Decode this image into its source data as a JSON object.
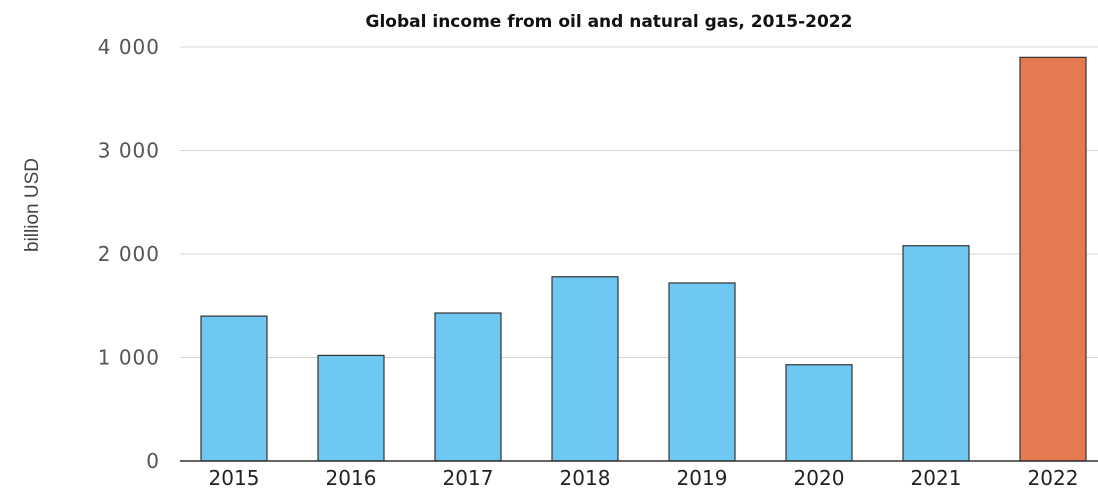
{
  "chart_data": {
    "type": "bar",
    "title": "Global income from oil and natural gas, 2015-2022",
    "xlabel": "",
    "ylabel": "billion USD",
    "categories": [
      "2015",
      "2016",
      "2017",
      "2018",
      "2019",
      "2020",
      "2021",
      "2022"
    ],
    "values": [
      1400,
      1020,
      1430,
      1780,
      1720,
      930,
      2080,
      3900
    ],
    "ylim": [
      0,
      4000
    ],
    "yticks": [
      0,
      1000,
      2000,
      3000,
      4000
    ],
    "ytick_labels": [
      "0",
      "1 000",
      "2 000",
      "3 000",
      "4 000"
    ],
    "grid": true,
    "legend": "none",
    "colors": {
      "default_bar": "#6fc8f2",
      "highlight_bar": "#e57a50",
      "highlight_category": "2022"
    }
  }
}
